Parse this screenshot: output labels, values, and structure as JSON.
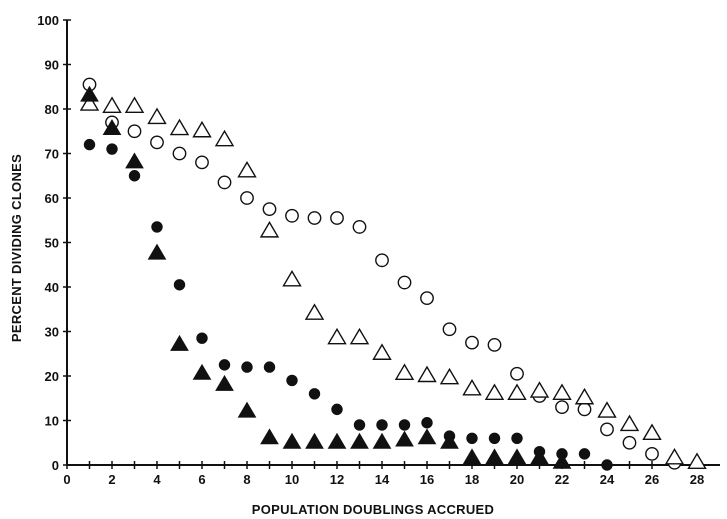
{
  "chart_data": {
    "type": "scatter",
    "title": "",
    "xlabel": "POPULATION DOUBLINGS ACCRUED",
    "ylabel": "PERCENT DIVIDING CLONES",
    "xlim": [
      0,
      28
    ],
    "ylim": [
      0,
      100
    ],
    "x_ticks": [
      "0",
      "2",
      "4",
      "6",
      "8",
      "10",
      "12",
      "14",
      "16",
      "18",
      "20",
      "22",
      "24",
      "26",
      "28"
    ],
    "y_ticks": [
      "0",
      "10",
      "20",
      "30",
      "40",
      "50",
      "60",
      "70",
      "80",
      "90",
      "100"
    ],
    "grid": false,
    "series": [
      {
        "marker": "open-circle",
        "color": "#111111",
        "points": [
          [
            1,
            85.5
          ],
          [
            2,
            77
          ],
          [
            3,
            75
          ],
          [
            4,
            72.5
          ],
          [
            5,
            70
          ],
          [
            6,
            68
          ],
          [
            7,
            63.5
          ],
          [
            8,
            60
          ],
          [
            9,
            57.5
          ],
          [
            10,
            56
          ],
          [
            11,
            55.5
          ],
          [
            12,
            55.5
          ],
          [
            13,
            53.5
          ],
          [
            14,
            46
          ],
          [
            15,
            41
          ],
          [
            16,
            37.5
          ],
          [
            17,
            30.5
          ],
          [
            18,
            27.5
          ],
          [
            19,
            27
          ],
          [
            20,
            20.5
          ],
          [
            21,
            15.5
          ],
          [
            22,
            13
          ],
          [
            23,
            12.5
          ],
          [
            24,
            8
          ],
          [
            25,
            5
          ],
          [
            26,
            2.5
          ],
          [
            27,
            0.5
          ]
        ]
      },
      {
        "marker": "open-triangle",
        "color": "#111111",
        "points": [
          [
            1,
            81
          ],
          [
            2,
            80.5
          ],
          [
            3,
            80.5
          ],
          [
            4,
            78
          ],
          [
            5,
            75.5
          ],
          [
            6,
            75
          ],
          [
            7,
            73
          ],
          [
            8,
            66
          ],
          [
            9,
            52.5
          ],
          [
            10,
            41.5
          ],
          [
            11,
            34
          ],
          [
            12,
            28.5
          ],
          [
            13,
            28.5
          ],
          [
            14,
            25
          ],
          [
            15,
            20.5
          ],
          [
            16,
            20
          ],
          [
            17,
            19.5
          ],
          [
            18,
            17
          ],
          [
            19,
            16
          ],
          [
            20,
            16
          ],
          [
            21,
            16.5
          ],
          [
            22,
            16
          ],
          [
            23,
            15
          ],
          [
            24,
            12
          ],
          [
            25,
            9
          ],
          [
            26,
            7
          ],
          [
            27,
            1.5
          ],
          [
            28,
            0.5
          ]
        ]
      },
      {
        "marker": "filled-circle",
        "color": "#111111",
        "points": [
          [
            1,
            72
          ],
          [
            2,
            71
          ],
          [
            3,
            65
          ],
          [
            4,
            53.5
          ],
          [
            5,
            40.5
          ],
          [
            6,
            28.5
          ],
          [
            7,
            22.5
          ],
          [
            8,
            22
          ],
          [
            9,
            22
          ],
          [
            10,
            19
          ],
          [
            11,
            16
          ],
          [
            12,
            12.5
          ],
          [
            13,
            9
          ],
          [
            14,
            9
          ],
          [
            15,
            9
          ],
          [
            16,
            9.5
          ],
          [
            17,
            6.5
          ],
          [
            18,
            6
          ],
          [
            19,
            6
          ],
          [
            20,
            6
          ],
          [
            21,
            3
          ],
          [
            22,
            2.5
          ],
          [
            23,
            2.5
          ],
          [
            24,
            0
          ]
        ]
      },
      {
        "marker": "filled-triangle",
        "color": "#111111",
        "points": [
          [
            1,
            83
          ],
          [
            2,
            75.5
          ],
          [
            3,
            68
          ],
          [
            4,
            47.5
          ],
          [
            5,
            27
          ],
          [
            6,
            20.5
          ],
          [
            7,
            18
          ],
          [
            8,
            12
          ],
          [
            9,
            6
          ],
          [
            10,
            5
          ],
          [
            11,
            5
          ],
          [
            12,
            5
          ],
          [
            13,
            5
          ],
          [
            14,
            5
          ],
          [
            15,
            5.5
          ],
          [
            16,
            6
          ],
          [
            17,
            5
          ],
          [
            18,
            1.5
          ],
          [
            19,
            1.5
          ],
          [
            20,
            1.5
          ],
          [
            21,
            1.5
          ],
          [
            22,
            0.5
          ]
        ]
      }
    ]
  }
}
